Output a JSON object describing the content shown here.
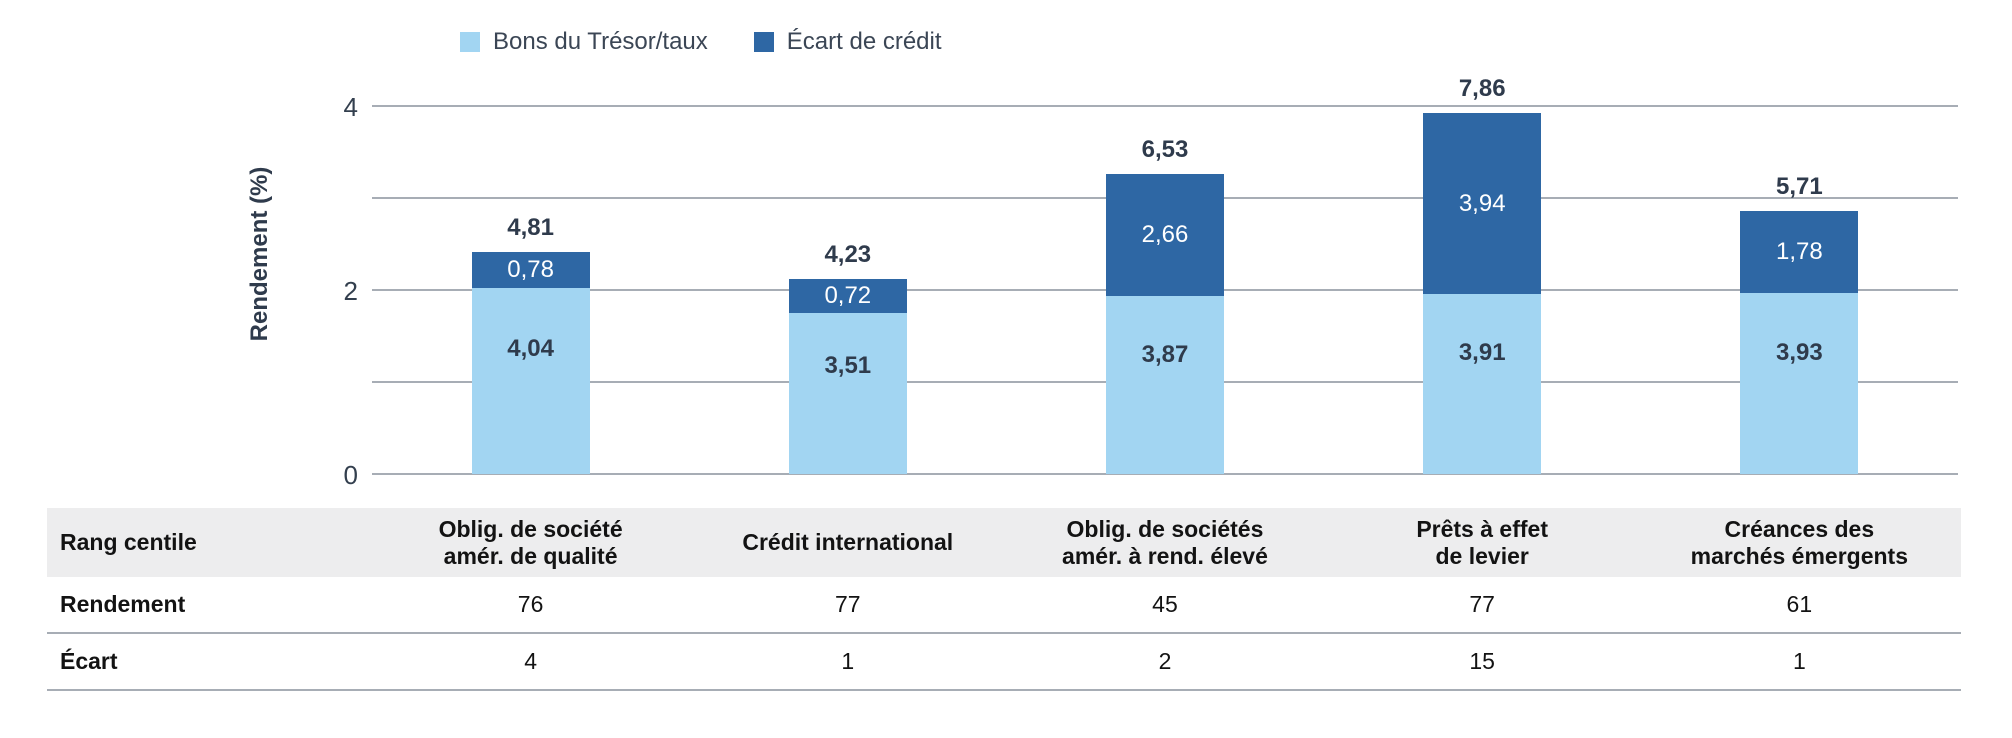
{
  "legend": [
    {
      "label": "Bons du Trésor/taux",
      "color": "#a2d5f2"
    },
    {
      "label": "Écart de crédit",
      "color": "#2e67a4"
    }
  ],
  "chart_data": {
    "type": "bar",
    "stacked": true,
    "ylabel": "Rendement (%)",
    "ylim": [
      0,
      8
    ],
    "yticks": [
      0,
      2,
      4,
      6,
      8
    ],
    "grid": "horizontal",
    "legend_position": "top",
    "categories": [
      "Oblig. de société amér. de qualité",
      "Crédit international",
      "Oblig. de sociétés amér. à rend. élevé",
      "Prêts à effet de levier",
      "Créances des marchés émergents"
    ],
    "series": [
      {
        "name": "Bons du Trésor/taux",
        "color": "#a2d5f2",
        "values": [
          4.04,
          3.51,
          3.87,
          3.91,
          3.93
        ],
        "labels": [
          "4,04",
          "3,51",
          "3,87",
          "3,91",
          "3,93"
        ]
      },
      {
        "name": "Écart de crédit",
        "color": "#2e67a4",
        "values": [
          0.78,
          0.72,
          2.66,
          3.94,
          1.78
        ],
        "labels": [
          "0,78",
          "0,72",
          "2,66",
          "3,94",
          "1,78"
        ]
      }
    ],
    "totals": [
      4.81,
      4.23,
      6.53,
      7.86,
      5.71
    ],
    "total_labels": [
      "4,81",
      "4,23",
      "6,53",
      "7,86",
      "5,71"
    ]
  },
  "table": {
    "header_row": {
      "label": "Rang centile",
      "columns": [
        [
          "Oblig. de société",
          "amér. de qualité"
        ],
        [
          "Crédit international"
        ],
        [
          "Oblig. de sociétés",
          "amér. à rend. élevé"
        ],
        [
          "Prêts à effet",
          "de levier"
        ],
        [
          "Créances des",
          "marchés émergents"
        ]
      ]
    },
    "rows": [
      {
        "label": "Rendement",
        "values": [
          "76",
          "77",
          "45",
          "77",
          "61"
        ]
      },
      {
        "label": "Écart",
        "values": [
          "4",
          "1",
          "2",
          "15",
          "1"
        ]
      }
    ]
  },
  "colors": {
    "treasury": "#a2d5f2",
    "credit_spread": "#2e67a4",
    "gridline": "#a7adb5",
    "chart_text": "#2f3b4c",
    "table_band": "#ededee"
  }
}
